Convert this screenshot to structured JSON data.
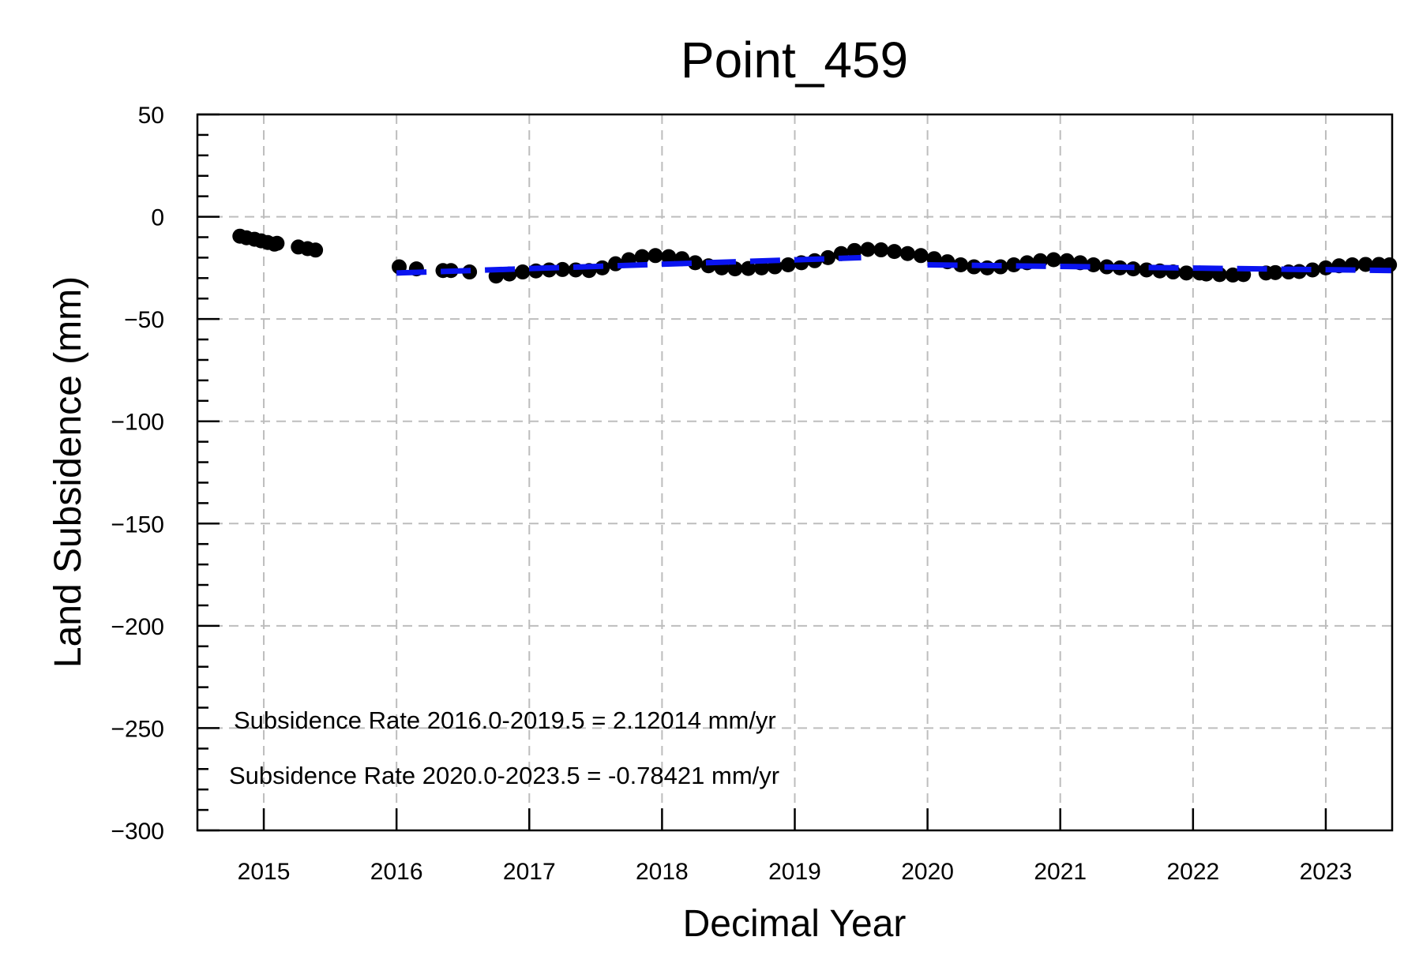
{
  "chart_data": {
    "type": "scatter",
    "title": "Point_459",
    "xlabel": "Decimal Year",
    "ylabel": "Land Subsidence (mm)",
    "xlim": [
      2014.5,
      2023.5
    ],
    "ylim": [
      -300,
      50
    ],
    "xticks": [
      2015,
      2016,
      2017,
      2018,
      2019,
      2020,
      2021,
      2022,
      2023
    ],
    "yticks": [
      50,
      0,
      -50,
      -100,
      -150,
      -200,
      -250,
      -300
    ],
    "ytick_labels": [
      "50",
      "0",
      "−50",
      "−100",
      "−150",
      "−200",
      "−250",
      "−300"
    ],
    "grid": true,
    "annotations": [
      "Subsidence Rate 2016.0-2019.5 = 2.12014 mm/yr",
      "Subsidence Rate 2020.0-2023.5 = -0.78421 mm/yr"
    ],
    "series": [
      {
        "kind": "points",
        "color": "#000000",
        "x": [
          2014.82,
          2014.87,
          2014.93,
          2014.98,
          2015.03,
          2015.08,
          2015.1,
          2015.26,
          2015.33,
          2015.39,
          2016.02,
          2016.15,
          2016.35,
          2016.41,
          2016.55,
          2016.75,
          2016.85,
          2016.95,
          2017.05,
          2017.15,
          2017.25,
          2017.35,
          2017.45,
          2017.55,
          2017.65,
          2017.75,
          2017.85,
          2017.95,
          2018.05,
          2018.15,
          2018.25,
          2018.35,
          2018.45,
          2018.55,
          2018.65,
          2018.75,
          2018.85,
          2018.95,
          2019.05,
          2019.15,
          2019.25,
          2019.35,
          2019.45,
          2019.55,
          2019.65,
          2019.75,
          2019.85,
          2019.95,
          2020.05,
          2020.15,
          2020.25,
          2020.35,
          2020.45,
          2020.55,
          2020.65,
          2020.75,
          2020.85,
          2020.95,
          2021.05,
          2021.15,
          2021.25,
          2021.35,
          2021.45,
          2021.55,
          2021.65,
          2021.75,
          2021.85,
          2021.95,
          2022.05,
          2022.1,
          2022.2,
          2022.3,
          2022.38,
          2022.55,
          2022.62,
          2022.72,
          2022.8,
          2022.9,
          2023.0,
          2023.1,
          2023.2,
          2023.3,
          2023.4,
          2023.48
        ],
        "y": [
          -9.5,
          -10.3,
          -11.0,
          -11.8,
          -12.6,
          -13.4,
          -13.0,
          -14.8,
          -15.6,
          -16.3,
          -24.5,
          -25.5,
          -26.3,
          -26.3,
          -27.0,
          -29.0,
          -28.0,
          -27.0,
          -26.5,
          -26.0,
          -25.8,
          -26.0,
          -26.3,
          -25.0,
          -23.0,
          -21.0,
          -19.5,
          -19.0,
          -19.5,
          -20.5,
          -22.5,
          -24.0,
          -25.0,
          -25.5,
          -25.3,
          -25.0,
          -24.5,
          -23.5,
          -22.5,
          -21.5,
          -20.0,
          -18.0,
          -16.5,
          -16.0,
          -16.2,
          -17.0,
          -18.0,
          -19.0,
          -20.5,
          -22.0,
          -23.5,
          -24.5,
          -25.0,
          -24.5,
          -23.5,
          -22.5,
          -21.5,
          -21.0,
          -21.5,
          -22.5,
          -23.5,
          -24.5,
          -25.0,
          -25.5,
          -26.0,
          -26.5,
          -27.0,
          -27.5,
          -27.5,
          -28.0,
          -28.3,
          -28.5,
          -28.3,
          -27.5,
          -27.3,
          -27.0,
          -26.8,
          -26.0,
          -25.0,
          -24.0,
          -23.5,
          -23.3,
          -23.3,
          -23.5
        ]
      },
      {
        "kind": "trend",
        "color": "#0a14f0",
        "segments": [
          {
            "x": [
              2016.0,
              2019.5
            ],
            "y": [
              -27.5,
              -20.0
            ]
          },
          {
            "x": [
              2020.0,
              2023.5
            ],
            "y": [
              -23.5,
              -26.3
            ]
          }
        ]
      }
    ]
  }
}
